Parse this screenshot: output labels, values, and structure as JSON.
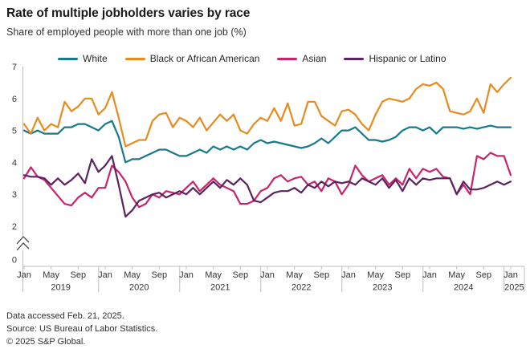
{
  "header": {
    "title": "Rate of multiple jobholders varies by race",
    "subtitle": "Share of employed people with more than one job (%)"
  },
  "chart_data": {
    "type": "line",
    "unit": "%",
    "frequency": "monthly",
    "x_start": "Jan 2019",
    "x_end": "Jan 2025",
    "y_axis": {
      "ticks": [
        7,
        6,
        5,
        4,
        3,
        2,
        0
      ],
      "plotted_range": [
        2,
        7
      ],
      "axis_break_between": [
        0,
        2
      ],
      "gridlines": false
    },
    "x_axis": {
      "month_ticks": [
        "Jan",
        "May",
        "Sep"
      ],
      "years": [
        "2019",
        "2020",
        "2021",
        "2022",
        "2023",
        "2024"
      ],
      "final_tick_month": "Jan",
      "final_tick_year": "2025"
    },
    "legend_position": "top",
    "series": [
      {
        "name": "White",
        "color": "#17798b",
        "values": [
          5.0,
          4.9,
          5.0,
          4.9,
          4.9,
          4.9,
          5.1,
          5.1,
          5.2,
          5.2,
          5.1,
          5.0,
          5.2,
          5.3,
          4.8,
          4.0,
          4.1,
          4.1,
          4.2,
          4.3,
          4.4,
          4.4,
          4.3,
          4.2,
          4.2,
          4.3,
          4.4,
          4.3,
          4.5,
          4.4,
          4.5,
          4.4,
          4.5,
          4.4,
          4.6,
          4.7,
          4.6,
          4.65,
          4.6,
          4.55,
          4.5,
          4.45,
          4.5,
          4.6,
          4.75,
          4.6,
          4.8,
          5.0,
          5.0,
          5.1,
          4.9,
          4.7,
          4.7,
          4.65,
          4.7,
          4.8,
          5.0,
          5.1,
          5.1,
          5.0,
          5.1,
          4.9,
          5.1,
          5.1,
          5.1,
          5.05,
          5.1,
          5.05,
          5.1,
          5.15,
          5.1,
          5.1,
          5.1
        ]
      },
      {
        "name": "Black or African American",
        "color": "#e88b1f",
        "values": [
          5.2,
          4.9,
          5.4,
          5.0,
          5.2,
          5.1,
          5.9,
          5.6,
          5.75,
          6.0,
          6.0,
          5.5,
          5.7,
          6.2,
          5.4,
          4.5,
          4.6,
          4.7,
          4.7,
          5.3,
          5.5,
          5.55,
          5.1,
          5.4,
          5.3,
          5.1,
          5.4,
          5.0,
          5.25,
          5.5,
          5.3,
          5.5,
          5.0,
          4.9,
          5.2,
          5.4,
          5.3,
          5.7,
          5.3,
          5.85,
          5.15,
          5.2,
          5.9,
          5.9,
          5.45,
          5.3,
          5.15,
          5.6,
          5.65,
          5.5,
          5.2,
          5.0,
          5.5,
          5.9,
          6.0,
          5.95,
          5.9,
          6.0,
          6.3,
          6.45,
          6.4,
          6.5,
          6.3,
          5.6,
          5.55,
          5.5,
          5.6,
          6.0,
          5.55,
          6.45,
          6.2,
          6.45,
          6.65
        ]
      },
      {
        "name": "Asian",
        "color": "#c9246b",
        "values": [
          3.5,
          3.85,
          3.55,
          3.45,
          3.2,
          2.95,
          2.7,
          2.65,
          2.9,
          3.05,
          2.9,
          3.2,
          3.2,
          3.9,
          3.7,
          3.4,
          2.9,
          2.6,
          2.7,
          3.0,
          2.9,
          3.1,
          3.05,
          3.0,
          3.2,
          3.4,
          3.1,
          3.3,
          3.5,
          3.3,
          3.2,
          3.1,
          2.7,
          2.7,
          2.8,
          3.1,
          3.2,
          3.5,
          3.6,
          3.4,
          3.5,
          3.55,
          3.3,
          3.4,
          3.1,
          3.5,
          3.4,
          3.0,
          3.3,
          3.9,
          3.6,
          3.4,
          3.5,
          3.6,
          3.3,
          3.5,
          3.3,
          3.8,
          3.5,
          3.8,
          3.7,
          3.8,
          3.55,
          3.5,
          3.0,
          3.3,
          3.0,
          4.2,
          4.1,
          4.3,
          4.2,
          4.2,
          3.6
        ]
      },
      {
        "name": "Hispanic or Latino",
        "color": "#5c2360",
        "values": [
          3.6,
          3.55,
          3.55,
          3.5,
          3.3,
          3.5,
          3.3,
          3.45,
          3.65,
          3.35,
          4.1,
          3.7,
          3.9,
          4.2,
          3.3,
          2.3,
          2.5,
          2.8,
          2.9,
          3.0,
          3.05,
          2.9,
          3.0,
          3.1,
          3.0,
          3.2,
          3.0,
          3.2,
          3.4,
          3.2,
          3.45,
          3.3,
          3.5,
          3.3,
          2.8,
          2.75,
          2.9,
          3.05,
          3.1,
          3.1,
          3.2,
          3.05,
          3.3,
          3.2,
          3.4,
          3.25,
          3.4,
          3.35,
          3.4,
          3.3,
          3.5,
          3.4,
          3.3,
          3.5,
          3.2,
          3.45,
          3.1,
          3.5,
          3.3,
          3.5,
          3.45,
          3.5,
          3.5,
          3.5,
          3.0,
          3.4,
          3.15,
          3.15,
          3.2,
          3.3,
          3.4,
          3.3,
          3.4
        ]
      }
    ]
  },
  "footer": {
    "lines": [
      "Data accessed Feb. 21, 2025.",
      "Source: US Bureau of Labor Statistics.",
      "© 2025 S&P Global."
    ]
  }
}
